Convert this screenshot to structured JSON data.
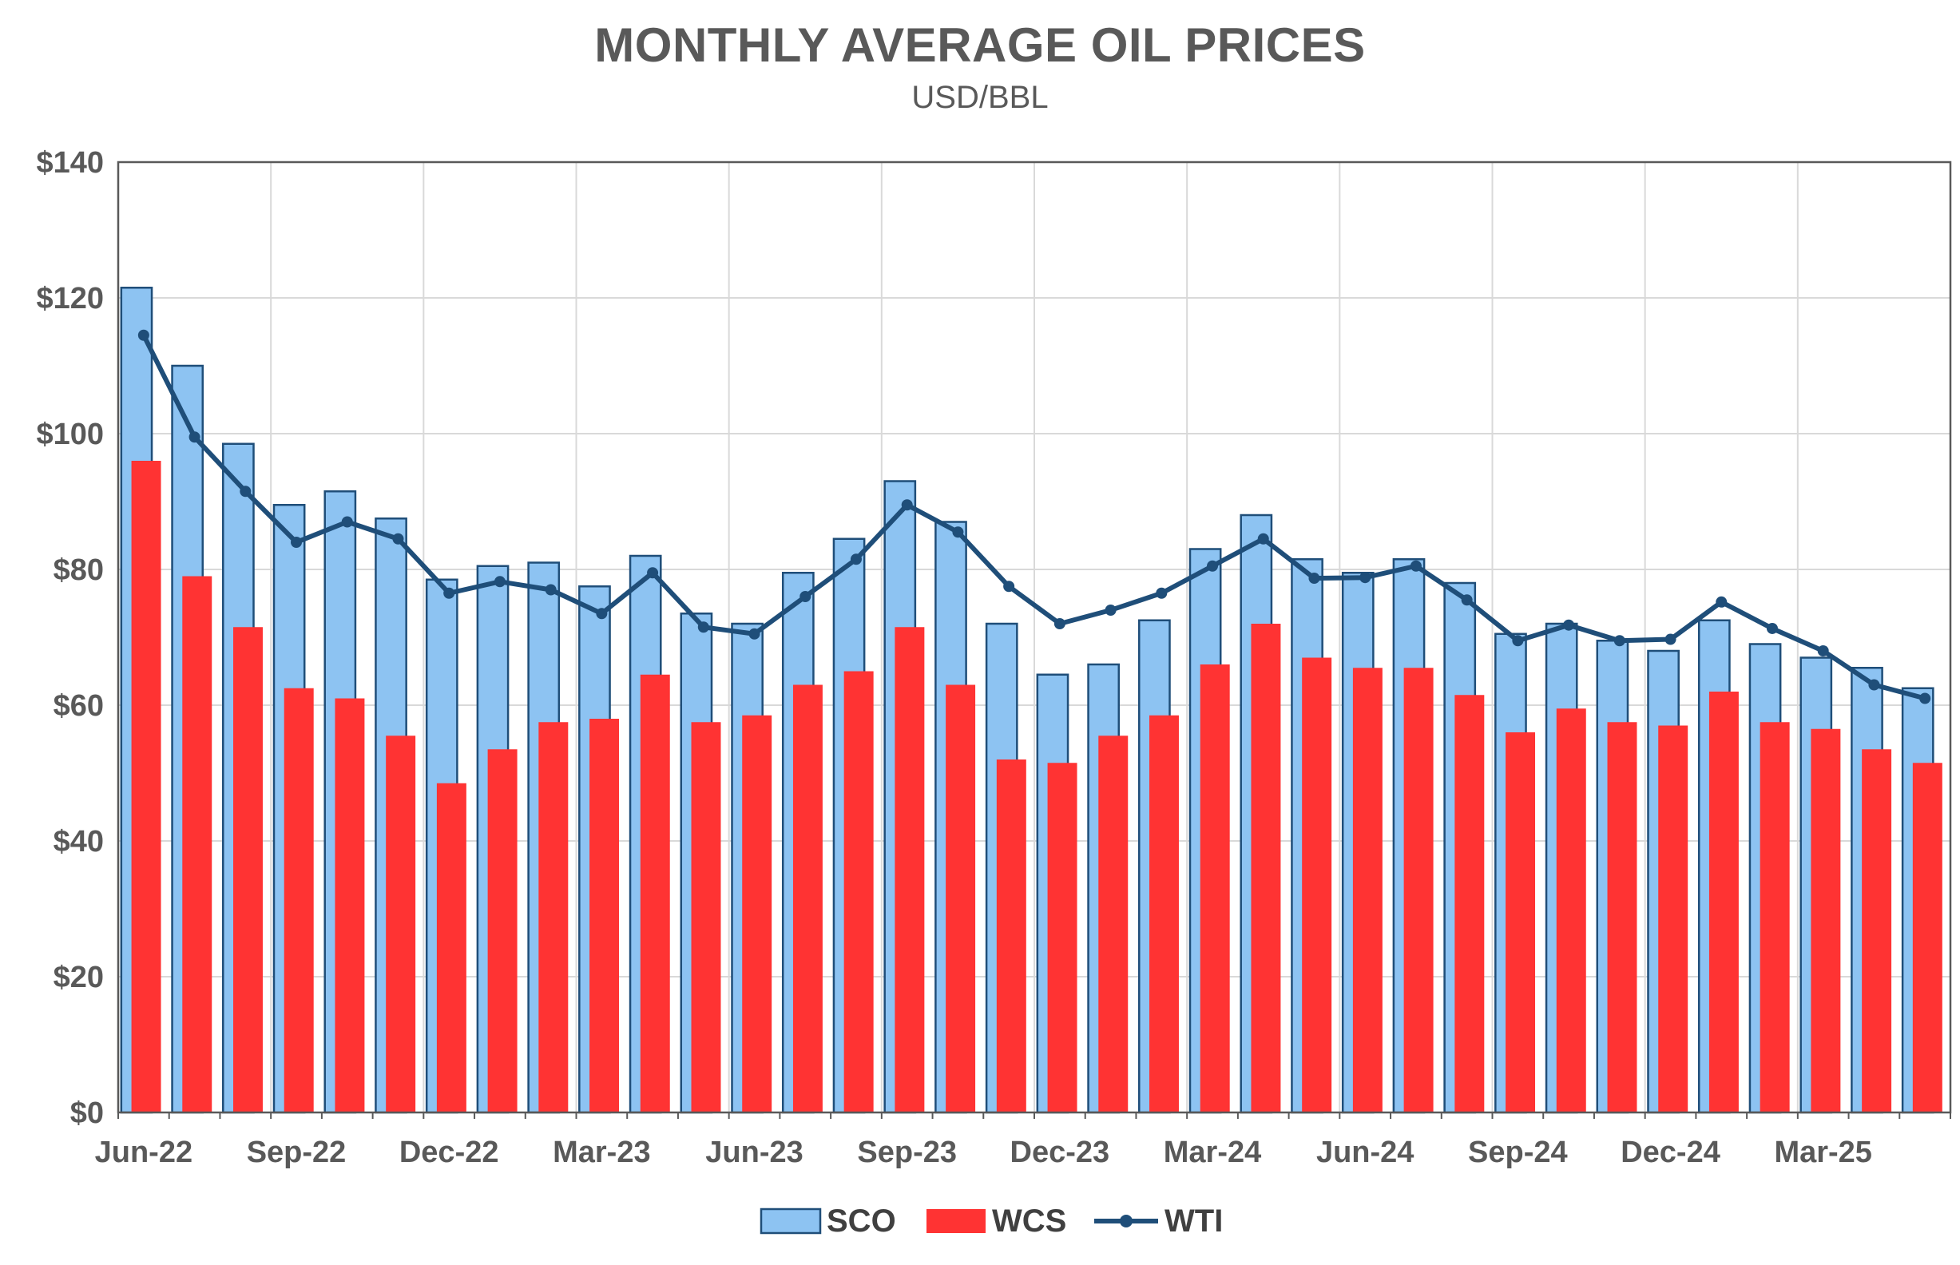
{
  "chart_data": {
    "type": "bar",
    "title": "MONTHLY AVERAGE OIL PRICES",
    "subtitle": "USD/BBL",
    "xlabel": "",
    "ylabel": "",
    "ylim": [
      0,
      140
    ],
    "y_ticks": [
      0,
      20,
      40,
      60,
      80,
      100,
      120,
      140
    ],
    "y_tick_labels": [
      "$0",
      "$20",
      "$40",
      "$60",
      "$80",
      "$100",
      "$120",
      "$140"
    ],
    "grid": true,
    "legend_position": "bottom-center",
    "categories": [
      "Jun-22",
      "Jul-22",
      "Aug-22",
      "Sep-22",
      "Oct-22",
      "Nov-22",
      "Dec-22",
      "Jan-23",
      "Feb-23",
      "Mar-23",
      "Apr-23",
      "May-23",
      "Jun-23",
      "Jul-23",
      "Aug-23",
      "Sep-23",
      "Oct-23",
      "Nov-23",
      "Dec-23",
      "Jan-24",
      "Feb-24",
      "Mar-24",
      "Apr-24",
      "May-24",
      "Jun-24",
      "Jul-24",
      "Aug-24",
      "Sep-24",
      "Oct-24",
      "Nov-24",
      "Dec-24",
      "Jan-25",
      "Feb-25",
      "Mar-25",
      "Apr-25",
      "May-25"
    ],
    "x_tick_labels": [
      "Jun-22",
      "Sep-22",
      "Dec-22",
      "Mar-23",
      "Jun-23",
      "Sep-23",
      "Dec-23",
      "Mar-24",
      "Jun-24",
      "Sep-24",
      "Dec-24",
      "Mar-25"
    ],
    "series": [
      {
        "name": "SCO",
        "kind": "bar",
        "color": "#8DC3F2",
        "edge": "#1F4E79",
        "values": [
          121.5,
          110,
          98.5,
          89.5,
          91.5,
          87.5,
          78.5,
          80.5,
          81,
          77.5,
          82,
          73.5,
          72,
          79.5,
          84.5,
          93,
          87,
          72,
          64.5,
          66,
          72.5,
          83,
          88,
          81.5,
          79.5,
          81.5,
          78,
          70.5,
          72,
          69.5,
          68,
          72.5,
          69,
          67,
          65.5,
          62.5
        ]
      },
      {
        "name": "WCS",
        "kind": "bar",
        "color": "#FF3333",
        "values": [
          96,
          79,
          71.5,
          62.5,
          61,
          55.5,
          48.5,
          53.5,
          57.5,
          58,
          64.5,
          57.5,
          58.5,
          63,
          65,
          71.5,
          63,
          52,
          51.5,
          55.5,
          58.5,
          66,
          72,
          67,
          65.5,
          65.5,
          61.5,
          56,
          59.5,
          57.5,
          57,
          62,
          57.5,
          56.5,
          53.5,
          51.5
        ]
      },
      {
        "name": "WTI",
        "kind": "line",
        "color": "#1F4E79",
        "values": [
          114.5,
          99.5,
          91.5,
          84,
          87,
          84.5,
          76.5,
          78.2,
          77,
          73.5,
          79.5,
          71.5,
          70.5,
          76,
          81.5,
          89.5,
          85.5,
          77.5,
          72,
          74,
          76.5,
          80.5,
          84.5,
          78.7,
          78.8,
          80.5,
          75.5,
          69.5,
          71.8,
          69.5,
          69.7,
          75.2,
          71.3,
          68,
          63,
          61
        ]
      }
    ]
  }
}
